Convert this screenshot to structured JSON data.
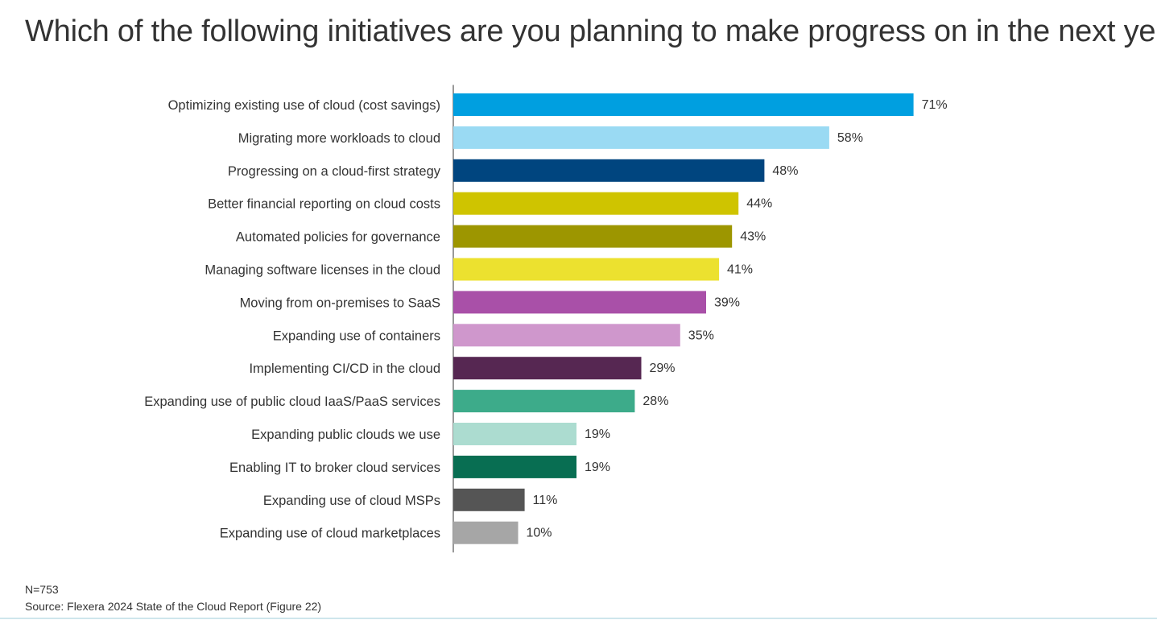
{
  "title": "Which of the following initiatives are you planning to make progress on in the next year?",
  "footnote": {
    "n": "N=753",
    "source": "Source: Flexera 2024 State of the Cloud Report (Figure 22)"
  },
  "chart_data": {
    "type": "bar",
    "orientation": "horizontal",
    "title": "Which of the following initiatives are you planning to make progress on in the next year?",
    "xlabel": "",
    "ylabel": "",
    "unit": "%",
    "xlim": [
      0,
      100
    ],
    "grid": false,
    "categories": [
      "Optimizing existing use of cloud (cost savings)",
      "Migrating more workloads to cloud",
      "Progressing on a cloud-first strategy",
      "Better financial reporting on cloud costs",
      "Automated policies for governance",
      "Managing software licenses in the cloud",
      "Moving from on-premises to SaaS",
      "Expanding use of containers",
      "Implementing CI/CD in the cloud",
      "Expanding use of public cloud IaaS/PaaS services",
      "Expanding public clouds we use",
      "Enabling IT to broker cloud services",
      "Expanding use of cloud MSPs",
      "Expanding use of cloud marketplaces"
    ],
    "values": [
      71,
      58,
      48,
      44,
      43,
      41,
      39,
      35,
      29,
      28,
      19,
      19,
      11,
      10
    ],
    "value_labels": [
      "71%",
      "58%",
      "48%",
      "44%",
      "43%",
      "41%",
      "39%",
      "35%",
      "29%",
      "28%",
      "19%",
      "19%",
      "11%",
      "10%"
    ],
    "colors": [
      "#009fe0",
      "#9adaf3",
      "#00457f",
      "#cfc400",
      "#9d9600",
      "#ece12f",
      "#a950a8",
      "#cf97cc",
      "#562752",
      "#3dab8a",
      "#acdcd0",
      "#086e52",
      "#555555",
      "#a6a6a6"
    ]
  }
}
